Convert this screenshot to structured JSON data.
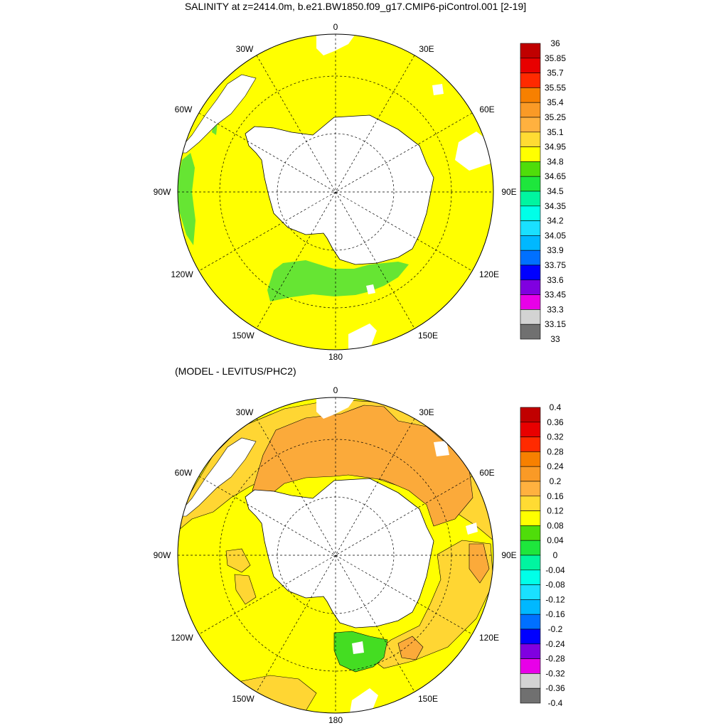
{
  "top_panel": {
    "title": "SALINITY at z=2414.0m, b.e21.BW1850.f09_g17.CMIP6-piControl.001 [2-19]",
    "longitude_labels": [
      "0",
      "30E",
      "60E",
      "90E",
      "120E",
      "150E",
      "180",
      "150W",
      "120W",
      "90W",
      "60W",
      "30W"
    ],
    "field_colors": {
      "dominant": "#ffff00",
      "lowband": "#66e533",
      "coast": "#ffffff"
    },
    "colorbar": {
      "labels": [
        "36",
        "35.85",
        "35.7",
        "35.55",
        "35.4",
        "35.25",
        "35.1",
        "34.95",
        "34.8",
        "34.65",
        "34.5",
        "34.35",
        "34.2",
        "34.05",
        "33.9",
        "33.75",
        "33.6",
        "33.45",
        "33.3",
        "33.15",
        "33"
      ],
      "colors": [
        "#c00000",
        "#e80000",
        "#ff2a00",
        "#f78000",
        "#fa9a26",
        "#ffb13f",
        "#ffdb33",
        "#ffff00",
        "#4fdd0a",
        "#1ee63c",
        "#00f5a0",
        "#00ffe8",
        "#1ae0ff",
        "#00b8ff",
        "#0070ff",
        "#0000ff",
        "#8000e0",
        "#e800e8",
        "#d3d3d3",
        "#707070"
      ]
    }
  },
  "bottom_panel": {
    "title": "(MODEL - LEVITUS/PHC2)",
    "longitude_labels": [
      "0",
      "30E",
      "60E",
      "90E",
      "120E",
      "150E",
      "180",
      "150W",
      "120W",
      "90W",
      "60W",
      "30W"
    ],
    "field_colors": {
      "dominant": "#ffff00",
      "pos_band": "#ffd633",
      "high_band": "#fbaa3a",
      "neg_band": "#44dd22"
    },
    "colorbar": {
      "labels": [
        "0.4",
        "0.36",
        "0.32",
        "0.28",
        "0.24",
        "0.2",
        "0.16",
        "0.12",
        "0.08",
        "0.04",
        "0",
        "-0.04",
        "-0.08",
        "-0.12",
        "-0.16",
        "-0.2",
        "-0.24",
        "-0.28",
        "-0.32",
        "-0.36",
        "-0.4"
      ],
      "colors": [
        "#c00000",
        "#e80000",
        "#ff2a00",
        "#f78000",
        "#fa9a26",
        "#ffb13f",
        "#ffdb33",
        "#ffff00",
        "#4fdd0a",
        "#1ee63c",
        "#00f5a0",
        "#00ffe8",
        "#1ae0ff",
        "#00b8ff",
        "#0070ff",
        "#0000ff",
        "#8000e0",
        "#e800e8",
        "#d3d3d3",
        "#707070"
      ]
    }
  }
}
